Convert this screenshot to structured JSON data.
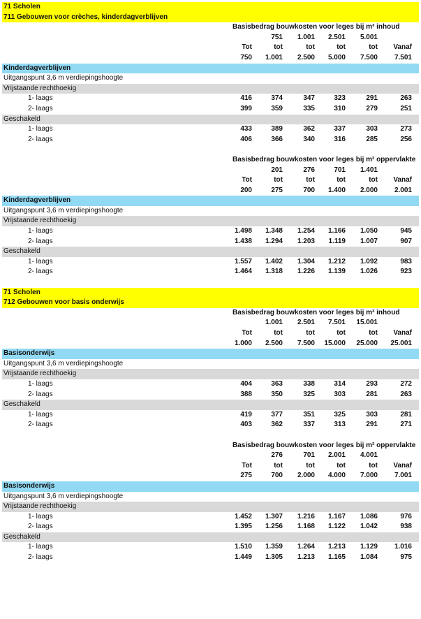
{
  "sections": [
    {
      "title": "71 Scholen",
      "subtitle": "711 Gebouwen voor crèches, kinderdagverblijven",
      "tables": [
        {
          "heading": "Basisbedrag bouwkosten voor leges bij m³ inhoud",
          "range_from": [
            "",
            "751",
            "1.001",
            "2.501",
            "5.001",
            ""
          ],
          "range_word": [
            "Tot",
            "tot",
            "tot",
            "tot",
            "tot",
            "Vanaf"
          ],
          "range_to": [
            "750",
            "1.001",
            "2.500",
            "5.000",
            "7.500",
            "7.501"
          ],
          "category": "Kinderdagverblijven",
          "note": "Uitgangspunt 3,6 m verdiepingshoogte",
          "groups": [
            {
              "label": "Vrijstaande rechthoekig",
              "rows": [
                {
                  "label": "1- laags",
                  "values": [
                    "416",
                    "374",
                    "347",
                    "323",
                    "291",
                    "263"
                  ]
                },
                {
                  "label": "2- laags",
                  "values": [
                    "399",
                    "359",
                    "335",
                    "310",
                    "279",
                    "251"
                  ]
                }
              ]
            },
            {
              "label": "Geschakeld",
              "rows": [
                {
                  "label": "1- laags",
                  "values": [
                    "433",
                    "389",
                    "362",
                    "337",
                    "303",
                    "273"
                  ]
                },
                {
                  "label": "2- laags",
                  "values": [
                    "406",
                    "366",
                    "340",
                    "316",
                    "285",
                    "256"
                  ]
                }
              ]
            }
          ]
        },
        {
          "heading": "Basisbedrag bouwkosten voor leges bij m² oppervlakte",
          "range_from": [
            "",
            "201",
            "276",
            "701",
            "1.401",
            ""
          ],
          "range_word": [
            "Tot",
            "tot",
            "tot",
            "tot",
            "tot",
            "Vanaf"
          ],
          "range_to": [
            "200",
            "275",
            "700",
            "1.400",
            "2.000",
            "2.001"
          ],
          "category": "Kinderdagverblijven",
          "note": "Uitgangspunt 3,6 m verdiepingshoogte",
          "groups": [
            {
              "label": "Vrijstaande rechthoekig",
              "rows": [
                {
                  "label": "1- laags",
                  "values": [
                    "1.498",
                    "1.348",
                    "1.254",
                    "1.166",
                    "1.050",
                    "945"
                  ]
                },
                {
                  "label": "2- laags",
                  "values": [
                    "1.438",
                    "1.294",
                    "1.203",
                    "1.119",
                    "1.007",
                    "907"
                  ]
                }
              ]
            },
            {
              "label": "Geschakeld",
              "rows": [
                {
                  "label": "1- laags",
                  "values": [
                    "1.557",
                    "1.402",
                    "1.304",
                    "1.212",
                    "1.092",
                    "983"
                  ]
                },
                {
                  "label": "2- laags",
                  "values": [
                    "1.464",
                    "1.318",
                    "1.226",
                    "1.139",
                    "1.026",
                    "923"
                  ]
                }
              ]
            }
          ]
        }
      ]
    },
    {
      "title": "71 Scholen",
      "subtitle": "712 Gebouwen voor basis onderwijs",
      "tables": [
        {
          "heading": "Basisbedrag bouwkosten voor leges bij m³ inhoud",
          "range_from": [
            "",
            "1.001",
            "2.501",
            "7.501",
            "15.001",
            ""
          ],
          "range_word": [
            "Tot",
            "tot",
            "tot",
            "tot",
            "tot",
            "Vanaf"
          ],
          "range_to": [
            "1.000",
            "2.500",
            "7.500",
            "15.000",
            "25.000",
            "25.001"
          ],
          "category": "Basisonderwijs",
          "note": "Uitgangspunt 3,6 m verdiepingshoogte",
          "groups": [
            {
              "label": "Vrijstaande rechthoekig",
              "rows": [
                {
                  "label": "1- laags",
                  "values": [
                    "404",
                    "363",
                    "338",
                    "314",
                    "293",
                    "272"
                  ]
                },
                {
                  "label": "2- laags",
                  "values": [
                    "388",
                    "350",
                    "325",
                    "303",
                    "281",
                    "263"
                  ]
                }
              ]
            },
            {
              "label": "Geschakeld",
              "rows": [
                {
                  "label": "1- laags",
                  "values": [
                    "419",
                    "377",
                    "351",
                    "325",
                    "303",
                    "281"
                  ]
                },
                {
                  "label": "2- laags",
                  "values": [
                    "403",
                    "362",
                    "337",
                    "313",
                    "291",
                    "271"
                  ]
                }
              ]
            }
          ]
        },
        {
          "heading": "Basisbedrag bouwkosten voor leges bij m² oppervlakte",
          "range_from": [
            "",
            "276",
            "701",
            "2.001",
            "4.001",
            ""
          ],
          "range_word": [
            "Tot",
            "tot",
            "tot",
            "tot",
            "tot",
            "Vanaf"
          ],
          "range_to": [
            "275",
            "700",
            "2.000",
            "4.000",
            "7.000",
            "7.001"
          ],
          "category": "Basisonderwijs",
          "note": "Uitgangspunt 3,6 m verdiepingshoogte",
          "groups": [
            {
              "label": "Vrijstaande rechthoekig",
              "rows": [
                {
                  "label": "1- laags",
                  "values": [
                    "1.452",
                    "1.307",
                    "1.216",
                    "1.167",
                    "1.086",
                    "976"
                  ]
                },
                {
                  "label": "2- laags",
                  "values": [
                    "1.395",
                    "1.256",
                    "1.168",
                    "1.122",
                    "1.042",
                    "938"
                  ]
                }
              ]
            },
            {
              "label": "Geschakeld",
              "rows": [
                {
                  "label": "1- laags",
                  "values": [
                    "1.510",
                    "1.359",
                    "1.264",
                    "1.213",
                    "1.129",
                    "1.016"
                  ]
                },
                {
                  "label": "2- laags",
                  "values": [
                    "1.449",
                    "1.305",
                    "1.213",
                    "1.165",
                    "1.084",
                    "975"
                  ]
                }
              ]
            }
          ]
        }
      ]
    }
  ]
}
